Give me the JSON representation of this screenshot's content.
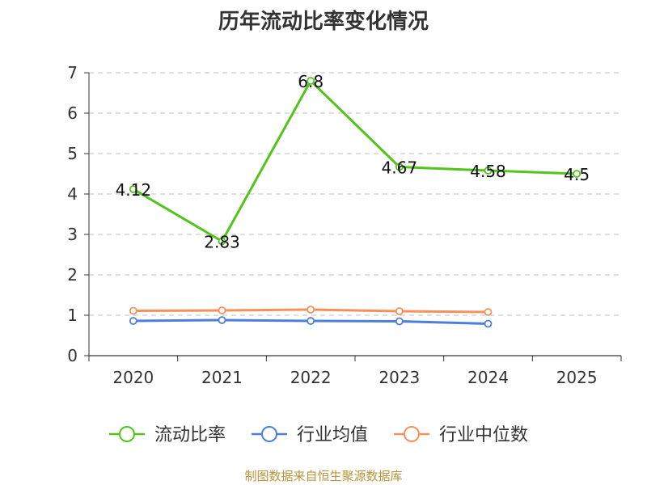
{
  "chart_data": {
    "type": "line",
    "title": "历年流动比率变化情况",
    "categories": [
      "2020",
      "2021",
      "2022",
      "2023",
      "2024",
      "2025"
    ],
    "ylim": [
      0,
      7
    ],
    "yticks": [
      "0",
      "1",
      "2",
      "3",
      "4",
      "5",
      "6",
      "7"
    ],
    "grid": true,
    "legend_position": "bottom",
    "series": [
      {
        "name": "流动比率",
        "color": "#52c41a",
        "values": [
          4.12,
          2.83,
          6.8,
          4.67,
          4.58,
          4.5
        ],
        "labels": [
          "4.12",
          "2.83",
          "6.8",
          "4.67",
          "4.58",
          "4.5"
        ]
      },
      {
        "name": "行业均值",
        "color": "#4e7fdc",
        "values": [
          0.86,
          0.88,
          0.86,
          0.85,
          0.79,
          null
        ]
      },
      {
        "name": "行业中位数",
        "color": "#f7915b",
        "values": [
          1.11,
          1.12,
          1.14,
          1.1,
          1.08,
          null
        ]
      }
    ]
  },
  "source": "制图数据来自恒生聚源数据库"
}
